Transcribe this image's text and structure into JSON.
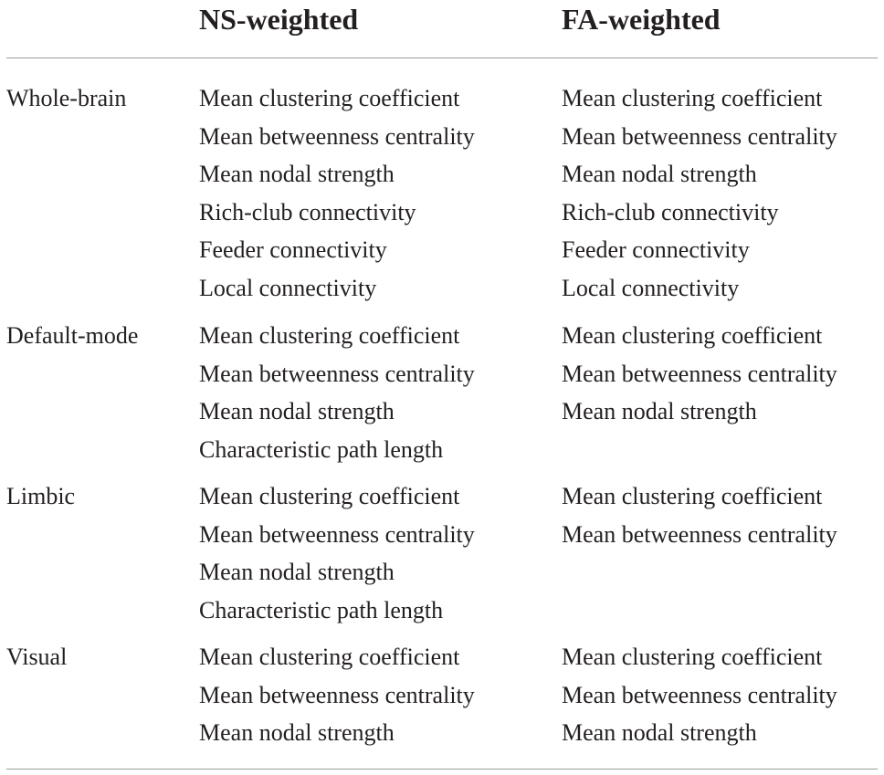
{
  "headers": {
    "ns": "NS-weighted",
    "fa": "FA-weighted"
  },
  "groups": [
    {
      "label": "Whole-brain",
      "ns": [
        "Mean clustering coefficient",
        "Mean betweenness centrality",
        "Mean nodal strength",
        "Rich-club connectivity",
        "Feeder connectivity",
        "Local connectivity"
      ],
      "fa": [
        "Mean clustering coefficient",
        "Mean betweenness centrality",
        "Mean nodal strength",
        "Rich-club connectivity",
        "Feeder connectivity",
        "Local connectivity"
      ]
    },
    {
      "label": "Default-mode",
      "ns": [
        "Mean clustering coefficient",
        "Mean betweenness centrality",
        "Mean nodal strength",
        "Characteristic path length"
      ],
      "fa": [
        "Mean clustering coefficient",
        "Mean betweenness centrality",
        "Mean nodal strength"
      ]
    },
    {
      "label": "Limbic",
      "ns": [
        "Mean clustering coefficient",
        "Mean betweenness centrality",
        "Mean nodal strength",
        "Characteristic path length"
      ],
      "fa": [
        "Mean clustering coefficient",
        "Mean betweenness centrality"
      ]
    },
    {
      "label": "Visual",
      "ns": [
        "Mean clustering coefficient",
        "Mean betweenness centrality",
        "Mean nodal strength"
      ],
      "fa": [
        "Mean clustering coefficient",
        "Mean betweenness centrality",
        "Mean nodal strength"
      ]
    }
  ]
}
